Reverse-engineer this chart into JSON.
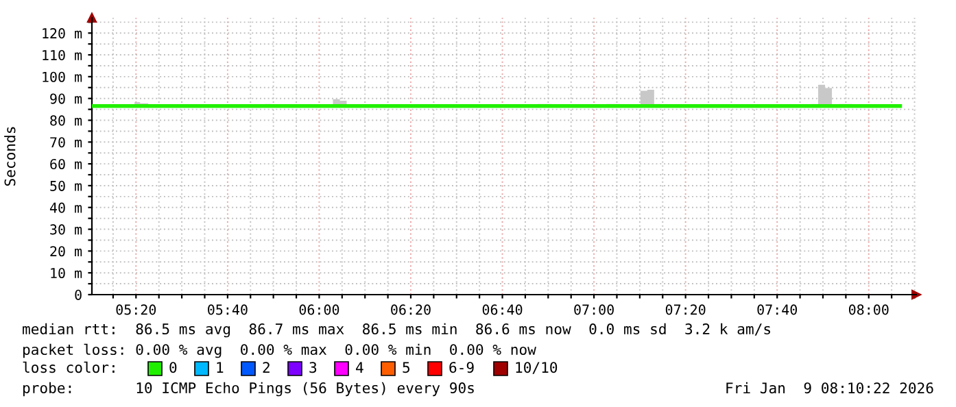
{
  "chart_data": {
    "type": "step",
    "ylabel": "Seconds",
    "legend_title": "loss color:",
    "legend": "bottom",
    "grid": true,
    "marker": "none",
    "line_style": "solid",
    "xlim": [
      5.1728,
      8.1728
    ],
    "ylim": [
      0,
      127
    ],
    "xticks": [
      {
        "value": 5.25,
        "label": null
      },
      {
        "value": 5.3333,
        "label": "05:20"
      },
      {
        "value": 5.4167,
        "label": null
      },
      {
        "value": 5.5,
        "label": null
      },
      {
        "value": 5.5833,
        "label": null
      },
      {
        "value": 5.6667,
        "label": "05:40"
      },
      {
        "value": 5.75,
        "label": null
      },
      {
        "value": 5.8333,
        "label": null
      },
      {
        "value": 5.9167,
        "label": null
      },
      {
        "value": 6.0,
        "label": "06:00"
      },
      {
        "value": 6.0833,
        "label": null
      },
      {
        "value": 6.1667,
        "label": null
      },
      {
        "value": 6.25,
        "label": null
      },
      {
        "value": 6.3333,
        "label": "06:20"
      },
      {
        "value": 6.4167,
        "label": null
      },
      {
        "value": 6.5,
        "label": null
      },
      {
        "value": 6.5833,
        "label": null
      },
      {
        "value": 6.6667,
        "label": "06:40"
      },
      {
        "value": 6.75,
        "label": null
      },
      {
        "value": 6.8333,
        "label": null
      },
      {
        "value": 6.9167,
        "label": null
      },
      {
        "value": 7.0,
        "label": "07:00"
      },
      {
        "value": 7.0833,
        "label": null
      },
      {
        "value": 7.1667,
        "label": null
      },
      {
        "value": 7.25,
        "label": null
      },
      {
        "value": 7.3333,
        "label": "07:20"
      },
      {
        "value": 7.4167,
        "label": null
      },
      {
        "value": 7.5,
        "label": null
      },
      {
        "value": 7.5833,
        "label": null
      },
      {
        "value": 7.6667,
        "label": "07:40"
      },
      {
        "value": 7.75,
        "label": null
      },
      {
        "value": 7.8333,
        "label": null
      },
      {
        "value": 7.9167,
        "label": null
      },
      {
        "value": 8.0,
        "label": "08:00"
      },
      {
        "value": 8.0833,
        "label": null
      },
      {
        "value": 8.1667,
        "label": null
      }
    ],
    "yticks": [
      0,
      {
        "value": 5,
        "label": null
      },
      {
        "value": 10,
        "label": "10 m"
      },
      {
        "value": 15,
        "label": null
      },
      {
        "value": 20,
        "label": "20 m"
      },
      {
        "value": 25,
        "label": null
      },
      {
        "value": 30,
        "label": "30 m"
      },
      {
        "value": 35,
        "label": null
      },
      {
        "value": 40,
        "label": "40 m"
      },
      {
        "value": 45,
        "label": null
      },
      {
        "value": 50,
        "label": "50 m"
      },
      {
        "value": 55,
        "label": null
      },
      {
        "value": 60,
        "label": "60 m"
      },
      {
        "value": 65,
        "label": null
      },
      {
        "value": 70,
        "label": "70 m"
      },
      {
        "value": 75,
        "label": null
      },
      {
        "value": 80,
        "label": "80 m"
      },
      {
        "value": 85,
        "label": null
      },
      {
        "value": 90,
        "label": "90 m"
      },
      {
        "value": 95,
        "label": null
      },
      {
        "value": 100,
        "label": "100 m"
      },
      {
        "value": 105,
        "label": null
      },
      {
        "value": 110,
        "label": "110 m"
      },
      {
        "value": 115,
        "label": null
      },
      {
        "value": 120,
        "label": "120 m"
      },
      {
        "value": 125,
        "label": null
      }
    ],
    "series": [
      {
        "name": "0",
        "color": "#20f000",
        "x": [
          5.179,
          5.328,
          5.348,
          5.378,
          5.801,
          5.826,
          6.05,
          6.075,
          6.1,
          6.796,
          6.846,
          7.045,
          7.095,
          7.169,
          7.194,
          7.219,
          7.244,
          7.791,
          7.816,
          7.841,
          7.866,
          7.891,
          7.94,
          8.114
        ],
        "values": [
          86.5,
          86.5,
          86.5,
          86.5,
          86.5,
          86.5,
          86.5,
          86.5,
          86.5,
          86.5,
          86.5,
          86.5,
          86.5,
          86.5,
          86.5,
          86.5,
          86.5,
          86.5,
          86.5,
          86.5,
          86.5,
          86.5,
          86.5,
          86.5
        ],
        "lower": [
          86.5,
          86.5,
          86.5,
          86.5,
          86.5,
          86.5,
          86.5,
          86.5,
          86.5,
          86.5,
          86.5,
          86.5,
          86.5,
          86.5,
          86.5,
          86.5,
          86.5,
          86.5,
          86.5,
          86.5,
          86.5,
          86.5,
          86.5,
          86.5
        ],
        "upper": [
          86.5,
          88.3,
          87.8,
          86.5,
          87.5,
          86.5,
          89.7,
          89,
          86.5,
          87.5,
          86.5,
          87.5,
          86.5,
          93.5,
          94,
          87.5,
          86.5,
          87.5,
          96.3,
          94.8,
          86.5,
          87.5,
          86.5,
          86.5
        ]
      },
      {
        "name": "1",
        "color": "#00b8ff"
      },
      {
        "name": "2",
        "color": "#0059ff"
      },
      {
        "name": "3",
        "color": "#7e00ff"
      },
      {
        "name": "4",
        "color": "#ff00ff"
      },
      {
        "name": "5",
        "color": "#ff5e00"
      },
      {
        "name": "6-9",
        "color": "#ff0000"
      },
      {
        "name": "10/10",
        "color": "#a10000"
      }
    ],
    "annotations": [
      "median rtt:  86.5 ms avg  86.7 ms max  86.5 ms min  86.6 ms now  0.0 ms sd  3.2 k am/s",
      "packet loss: 0.00 % avg  0.00 % max  0.00 % min  0.00 % now",
      "probe:       10 ICMP Echo Pings (56 Bytes) every 90s",
      "Fri Jan  9 08:10:22 2026"
    ]
  }
}
